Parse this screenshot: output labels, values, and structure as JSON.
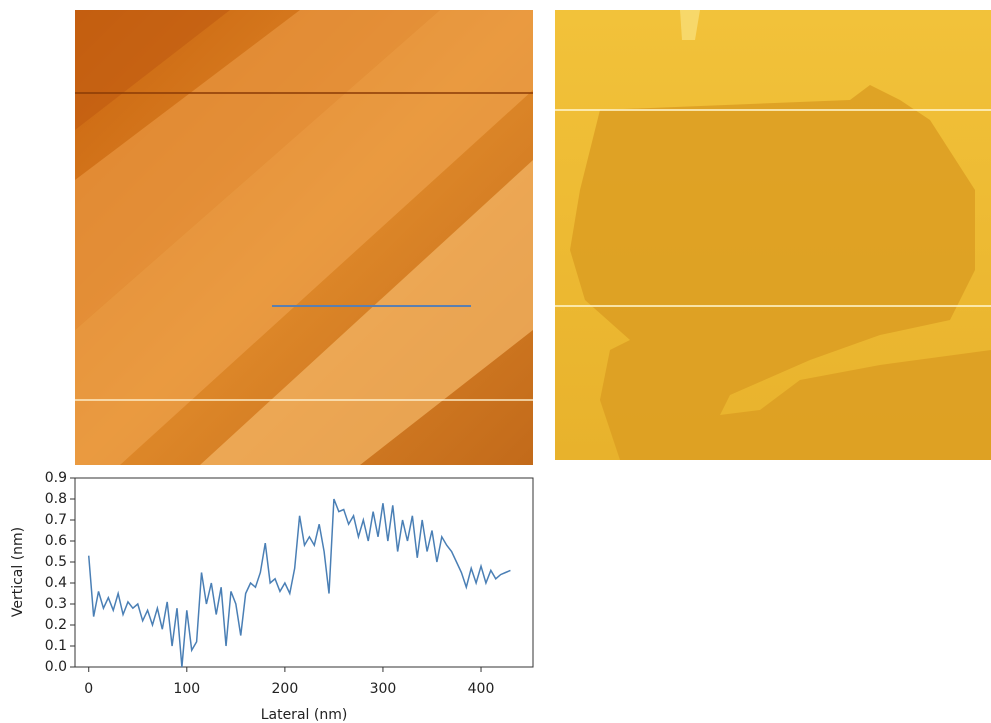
{
  "chart_data": {
    "type": "line",
    "x_label": "Lateral (nm)",
    "y_label": "Vertical (nm)",
    "x": [
      0,
      5,
      10,
      15,
      20,
      25,
      30,
      35,
      40,
      45,
      50,
      55,
      60,
      65,
      70,
      75,
      80,
      85,
      90,
      95,
      100,
      105,
      110,
      115,
      120,
      125,
      130,
      135,
      140,
      145,
      150,
      155,
      160,
      165,
      170,
      175,
      180,
      185,
      190,
      195,
      200,
      205,
      210,
      215,
      220,
      225,
      230,
      235,
      240,
      245,
      250,
      255,
      260,
      265,
      270,
      275,
      280,
      285,
      290,
      295,
      300,
      305,
      310,
      315,
      320,
      325,
      330,
      335,
      340,
      345,
      350,
      355,
      360,
      365,
      370,
      375,
      380,
      385,
      390,
      395,
      400,
      405,
      410,
      415,
      420,
      425,
      430
    ],
    "series": [
      {
        "color": "#4a7fb5",
        "values": [
          0.53,
          0.24,
          0.36,
          0.28,
          0.33,
          0.27,
          0.35,
          0.25,
          0.31,
          0.28,
          0.3,
          0.22,
          0.27,
          0.2,
          0.28,
          0.18,
          0.31,
          0.1,
          0.28,
          0.0,
          0.27,
          0.08,
          0.12,
          0.45,
          0.3,
          0.4,
          0.25,
          0.38,
          0.1,
          0.36,
          0.3,
          0.15,
          0.35,
          0.4,
          0.38,
          0.45,
          0.59,
          0.4,
          0.42,
          0.36,
          0.4,
          0.35,
          0.47,
          0.72,
          0.58,
          0.62,
          0.58,
          0.68,
          0.55,
          0.35,
          0.8,
          0.74,
          0.75,
          0.68,
          0.72,
          0.62,
          0.7,
          0.6,
          0.74,
          0.62,
          0.78,
          0.6,
          0.77,
          0.55,
          0.7,
          0.6,
          0.72,
          0.52,
          0.7,
          0.55,
          0.65,
          0.5,
          0.62,
          0.58,
          0.55,
          0.5,
          0.45,
          0.38,
          0.47,
          0.4,
          0.48,
          0.4,
          0.46,
          0.42,
          0.44,
          0.45,
          0.46
        ]
      }
    ],
    "xlim": [
      -14,
      453
    ],
    "ylim": [
      0,
      0.9
    ],
    "xticks": [
      0,
      100,
      200,
      300,
      400
    ],
    "yticks": [
      {
        "value": 0,
        "label": "0.0"
      },
      0.1,
      0.2,
      0.3,
      0.4,
      0.5,
      0.6,
      0.7,
      0.8,
      0.9
    ]
  }
}
